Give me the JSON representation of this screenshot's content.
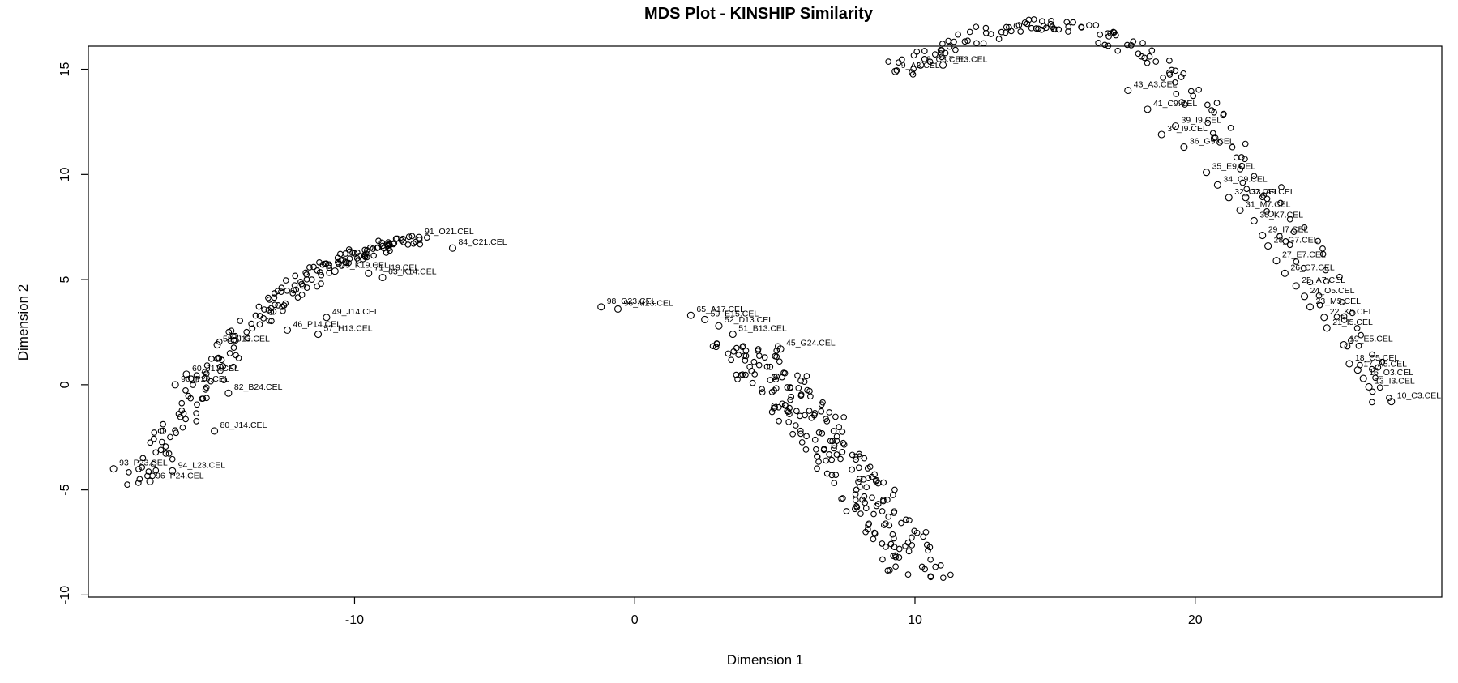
{
  "chart_data": {
    "type": "scatter",
    "title": "MDS Plot - KINSHIP Similarity",
    "xlabel": "Dimension 1",
    "ylabel": "Dimension 2",
    "xlim": [
      -19.5,
      28.8
    ],
    "ylim": [
      -10.1,
      16.1
    ],
    "xticks": [
      -10,
      0,
      10,
      20
    ],
    "yticks": [
      -10,
      -5,
      0,
      5,
      10,
      15
    ],
    "grid": false,
    "legend": "none",
    "marker": "open-circle",
    "labeled_points": [
      {
        "x": 9.3,
        "y": 14.9,
        "label": "9_A3.CEL"
      },
      {
        "x": 10.2,
        "y": 15.2,
        "label": "8_C3.CEL"
      },
      {
        "x": 11.0,
        "y": 15.2,
        "label": "7_E3.CEL"
      },
      {
        "x": 17.6,
        "y": 14.0,
        "label": "43_A3.CEL"
      },
      {
        "x": 18.3,
        "y": 13.1,
        "label": "41_C9.CEL"
      },
      {
        "x": 19.3,
        "y": 12.3,
        "label": "39_I9.CEL"
      },
      {
        "x": 18.8,
        "y": 11.9,
        "label": "37_I9.CEL"
      },
      {
        "x": 19.6,
        "y": 11.3,
        "label": "36_G9.CEL"
      },
      {
        "x": 20.4,
        "y": 10.1,
        "label": "35_E9.CEL"
      },
      {
        "x": 20.8,
        "y": 9.5,
        "label": "34_C9.CEL"
      },
      {
        "x": 21.8,
        "y": 8.9,
        "label": "33_A9.CEL"
      },
      {
        "x": 21.2,
        "y": 8.9,
        "label": "32_O7.CEL"
      },
      {
        "x": 21.6,
        "y": 8.3,
        "label": "31_M7.CEL"
      },
      {
        "x": 22.1,
        "y": 7.8,
        "label": "30_K7.CEL"
      },
      {
        "x": 22.4,
        "y": 7.1,
        "label": "29_I7.CEL"
      },
      {
        "x": 22.6,
        "y": 6.6,
        "label": "28_G7.CEL"
      },
      {
        "x": 22.9,
        "y": 5.9,
        "label": "27_E7.CEL"
      },
      {
        "x": 23.2,
        "y": 5.3,
        "label": "26_C7.CEL"
      },
      {
        "x": 23.6,
        "y": 4.7,
        "label": "25_A7.CEL"
      },
      {
        "x": 23.9,
        "y": 4.2,
        "label": "24_O5.CEL"
      },
      {
        "x": 24.1,
        "y": 3.7,
        "label": "23_M5.CEL"
      },
      {
        "x": 24.6,
        "y": 3.2,
        "label": "22_K5.CEL"
      },
      {
        "x": 24.7,
        "y": 2.7,
        "label": "21_I5.CEL"
      },
      {
        "x": 25.3,
        "y": 1.9,
        "label": "19_E5.CEL"
      },
      {
        "x": 25.5,
        "y": 1.0,
        "label": "18_C5.CEL"
      },
      {
        "x": 25.8,
        "y": 0.7,
        "label": "17_A5.CEL"
      },
      {
        "x": 26.0,
        "y": 0.3,
        "label": "16_O3.CEL"
      },
      {
        "x": 26.2,
        "y": -0.1,
        "label": "13_I3.CEL"
      },
      {
        "x": 27.0,
        "y": -0.8,
        "label": "10_C3.CEL"
      },
      {
        "x": -1.2,
        "y": 3.7,
        "label": "98_O23.CEL"
      },
      {
        "x": -0.6,
        "y": 3.6,
        "label": "96_M23.CEL"
      },
      {
        "x": 2.0,
        "y": 3.3,
        "label": "65_A17.CEL"
      },
      {
        "x": 2.5,
        "y": 3.1,
        "label": "59_E15.CEL"
      },
      {
        "x": 3.0,
        "y": 2.8,
        "label": "52_D13.CEL"
      },
      {
        "x": 3.5,
        "y": 2.4,
        "label": "51_B13.CEL"
      },
      {
        "x": 5.2,
        "y": 1.7,
        "label": "45_G24.CEL"
      },
      {
        "x": -7.7,
        "y": 7.0,
        "label": "91_O21.CEL"
      },
      {
        "x": -6.5,
        "y": 6.5,
        "label": "84_C21.CEL"
      },
      {
        "x": -10.7,
        "y": 5.4,
        "label": "75_K19.CEL"
      },
      {
        "x": -9.5,
        "y": 5.3,
        "label": "71_I19.CEL"
      },
      {
        "x": -9.0,
        "y": 5.1,
        "label": "63_K14.CEL"
      },
      {
        "x": -11.0,
        "y": 3.2,
        "label": "49_J14.CEL"
      },
      {
        "x": -12.4,
        "y": 2.6,
        "label": "46_P14.CEL"
      },
      {
        "x": -14.9,
        "y": 1.9,
        "label": "58_J13.CEL"
      },
      {
        "x": -11.3,
        "y": 2.4,
        "label": "57_H13.CEL"
      },
      {
        "x": -16.0,
        "y": 0.5,
        "label": "60_J10.CEL"
      },
      {
        "x": -16.4,
        "y": 0.0,
        "label": "90_P20.CEL"
      },
      {
        "x": -14.5,
        "y": -0.4,
        "label": "82_B24.CEL"
      },
      {
        "x": -15.0,
        "y": -2.2,
        "label": "80_J14.CEL"
      },
      {
        "x": -18.6,
        "y": -4.0,
        "label": "93_P23.CEL"
      },
      {
        "x": -16.5,
        "y": -4.1,
        "label": "94_L23.CEL"
      },
      {
        "x": -17.3,
        "y": -4.6,
        "label": "96_P24.CEL"
      }
    ],
    "clusters": [
      {
        "name": "left",
        "from": [
          -17.7,
          -4.7
        ],
        "to": [
          -7.7,
          6.9
        ],
        "count": 200
      },
      {
        "name": "center",
        "from": [
          3.8,
          2.0
        ],
        "to": [
          10.3,
          -9.1
        ],
        "count": 230
      },
      {
        "name": "right",
        "from": [
          9.3,
          14.9
        ],
        "to": [
          27.0,
          -0.8
        ],
        "count": 170
      }
    ]
  }
}
